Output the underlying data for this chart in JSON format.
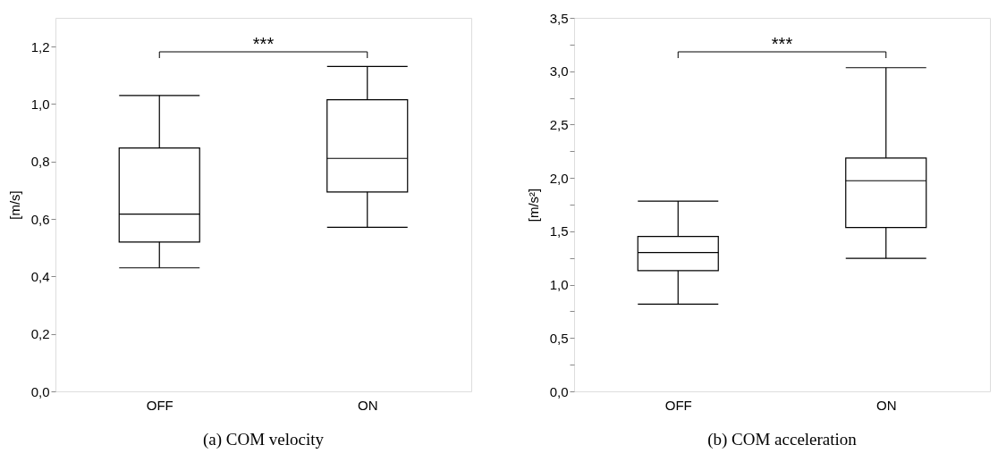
{
  "chart_data": [
    {
      "type": "box",
      "title": "(a) COM velocity",
      "ylabel": "[m/s]",
      "categories": [
        "OFF",
        "ON"
      ],
      "boxes": [
        {
          "low": 0.43,
          "q1": 0.52,
          "median": 0.617,
          "q3": 0.847,
          "high": 1.03
        },
        {
          "low": 0.571,
          "q1": 0.694,
          "median": 0.811,
          "q3": 1.015,
          "high": 1.131
        }
      ],
      "ylim": [
        0,
        1.3
      ],
      "yticks": [
        {
          "value": 0,
          "label": "0,0"
        },
        {
          "value": 0.2,
          "label": "0,2"
        },
        {
          "value": 0.4,
          "label": "0,4"
        },
        {
          "value": 0.6,
          "label": "0,6"
        },
        {
          "value": 0.8,
          "label": "0,8"
        },
        {
          "value": 1.0,
          "label": "1,0"
        },
        {
          "value": 1.2,
          "label": "1,2"
        }
      ],
      "annotations": [
        "***"
      ],
      "grid": false
    },
    {
      "type": "box",
      "title": "(b) COM acceleration",
      "ylabel": "[m/s²]",
      "categories": [
        "OFF",
        "ON"
      ],
      "boxes": [
        {
          "low": 0.817,
          "q1": 1.131,
          "median": 1.301,
          "q3": 1.451,
          "high": 1.783
        },
        {
          "low": 1.247,
          "q1": 1.535,
          "median": 1.974,
          "q3": 2.187,
          "high": 3.033
        }
      ],
      "ylim": [
        0,
        3.5
      ],
      "yticks": [
        {
          "value": 0,
          "label": "0,0"
        },
        {
          "value": 0.25,
          "label": null
        },
        {
          "value": 0.5,
          "label": "0,5"
        },
        {
          "value": 0.75,
          "label": null
        },
        {
          "value": 1.0,
          "label": "1,0"
        },
        {
          "value": 1.25,
          "label": null
        },
        {
          "value": 1.5,
          "label": "1,5"
        },
        {
          "value": 1.75,
          "label": null
        },
        {
          "value": 2.0,
          "label": "2,0"
        },
        {
          "value": 2.25,
          "label": null
        },
        {
          "value": 2.5,
          "label": "2,5"
        },
        {
          "value": 2.75,
          "label": null
        },
        {
          "value": 3.0,
          "label": "3,0"
        },
        {
          "value": 3.25,
          "label": null
        },
        {
          "value": 3.5,
          "label": "3,5"
        }
      ],
      "annotations": [
        "***"
      ],
      "grid": false
    }
  ]
}
